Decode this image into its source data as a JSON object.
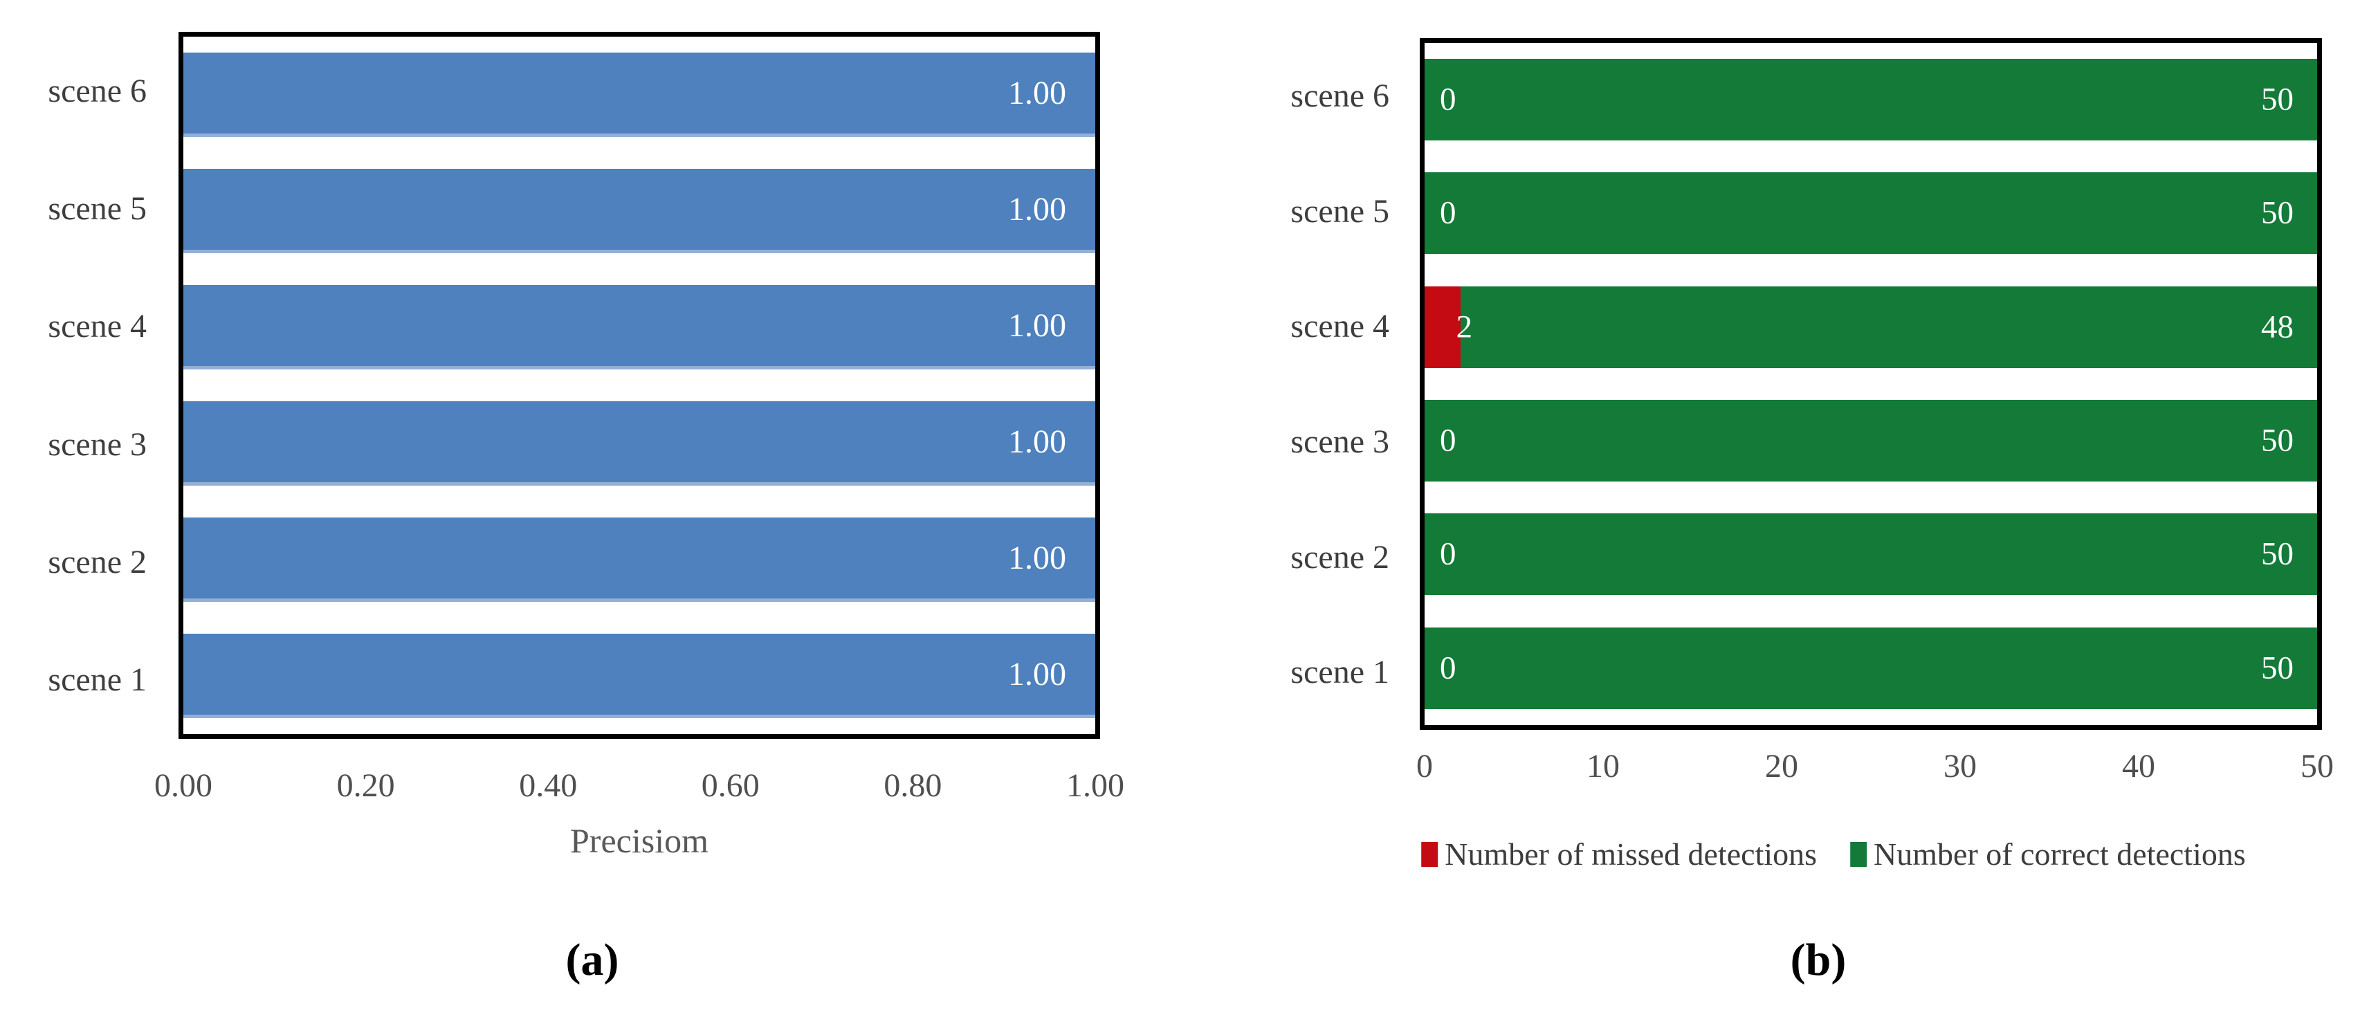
{
  "figure": {
    "caption_a": "(a)",
    "caption_b": "(b)"
  },
  "chart_data": [
    {
      "id": "a",
      "type": "bar",
      "orientation": "horizontal",
      "categories_top_to_bottom": [
        "scene 6",
        "scene 5",
        "scene 4",
        "scene 3",
        "scene 2",
        "scene 1"
      ],
      "values_top_to_bottom": [
        1.0,
        1.0,
        1.0,
        1.0,
        1.0,
        1.0
      ],
      "bar_labels_top_to_bottom": [
        "1.00",
        "1.00",
        "1.00",
        "1.00",
        "1.00",
        "1.00"
      ],
      "xlabel": "Precisiom",
      "xlim": [
        0,
        1
      ],
      "xticks": [
        "0.00",
        "0.20",
        "0.40",
        "0.60",
        "0.80",
        "1.00"
      ],
      "bar_color": "#4E81BD",
      "bar_label_color": "#ffffff",
      "grid": false,
      "caption": "(a)"
    },
    {
      "id": "b",
      "type": "stacked-bar",
      "orientation": "horizontal",
      "categories_top_to_bottom": [
        "scene 6",
        "scene 5",
        "scene 4",
        "scene 3",
        "scene 2",
        "scene 1"
      ],
      "series": [
        {
          "name": "Number of missed detections",
          "color": "#C40A12",
          "values_top_to_bottom": [
            0,
            0,
            2,
            0,
            0,
            0
          ],
          "labels_top_to_bottom": [
            "0",
            "0",
            "2",
            "0",
            "0",
            "0"
          ]
        },
        {
          "name": "Number of correct detections",
          "color": "#147A38",
          "values_top_to_bottom": [
            50,
            50,
            48,
            50,
            50,
            50
          ],
          "labels_top_to_bottom": [
            "50",
            "50",
            "48",
            "50",
            "50",
            "50"
          ]
        }
      ],
      "xlim": [
        0,
        50
      ],
      "xticks": [
        "0",
        "10",
        "20",
        "30",
        "40",
        "50"
      ],
      "legend_position": "bottom",
      "stack_label_color": "#ffffff",
      "grid": false,
      "caption": "(b)"
    }
  ]
}
